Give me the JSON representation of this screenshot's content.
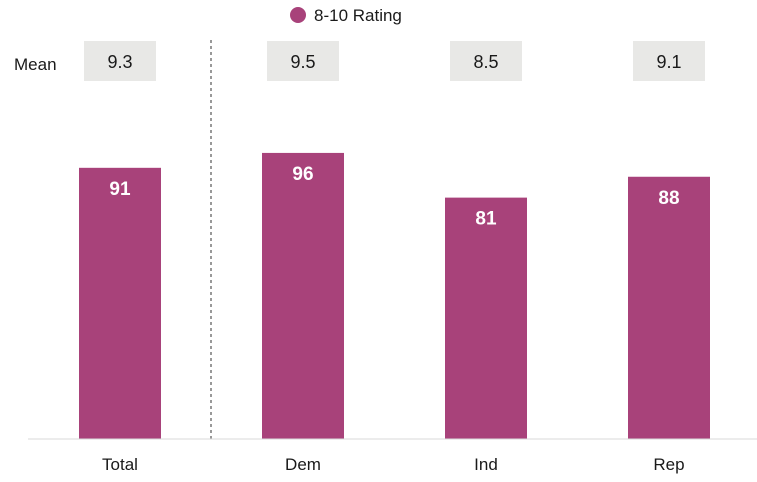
{
  "chart_data": {
    "type": "bar",
    "categories": [
      "Total",
      "Dem",
      "Ind",
      "Rep"
    ],
    "series": [
      {
        "name": "8-10 Rating",
        "values": [
          91,
          96,
          81,
          88
        ],
        "color": "#a8427a"
      }
    ],
    "mean_row": {
      "label": "Mean",
      "values": [
        "9.3",
        "9.5",
        "8.5",
        "9.1"
      ]
    },
    "legend_position": "top",
    "ylim": [
      0,
      100
    ],
    "grid": false,
    "separator_after_category": "Total"
  }
}
